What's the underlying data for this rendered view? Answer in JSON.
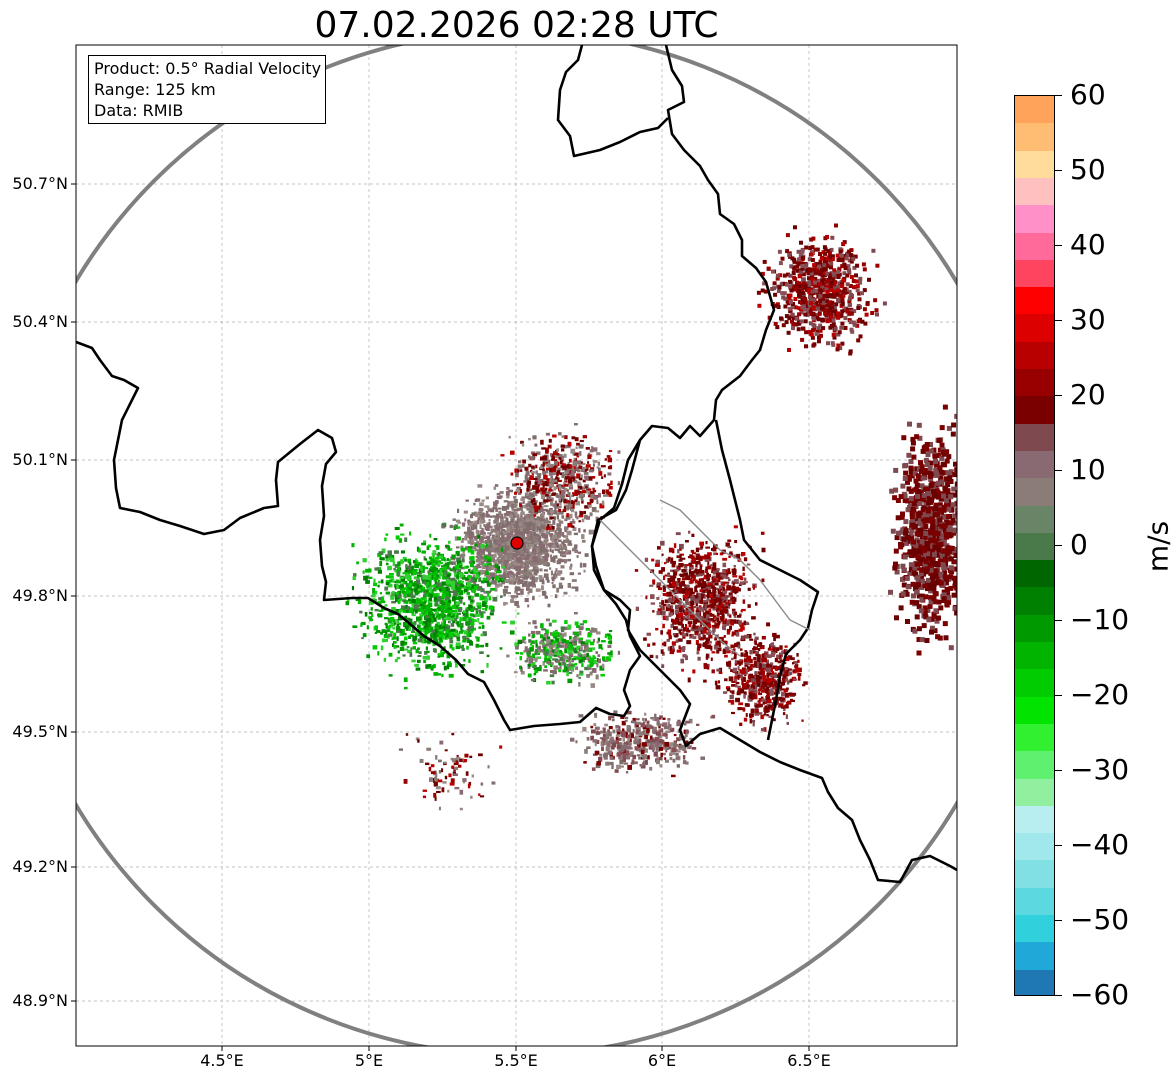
{
  "title": "07.02.2026 02:28 UTC",
  "info_box": {
    "product": "Product: 0.5° Radial Velocity",
    "range": "Range: 125 km",
    "source": "Data: RMIB"
  },
  "latitude_labels": [
    "50.7°N",
    "50.4°N",
    "50.1°N",
    "49.8°N",
    "49.5°N",
    "49.2°N",
    "48.9°N"
  ],
  "longitude_labels": [
    "4.5°E",
    "5°E",
    "5.5°E",
    "6°E",
    "6.5°E"
  ],
  "colorbar": {
    "unit": "m/s",
    "ticks": [
      "60",
      "50",
      "40",
      "30",
      "20",
      "10",
      "0",
      "−10",
      "−20",
      "−30",
      "−40",
      "−50",
      "−60"
    ],
    "colors_top_to_bottom": [
      "#ffa35a",
      "#ffbd74",
      "#ffdc9c",
      "#ffc0c0",
      "#ff90c8",
      "#ff6a9a",
      "#ff4460",
      "#ff0000",
      "#dc0000",
      "#b80000",
      "#980000",
      "#7a0000",
      "#7e4a50",
      "#8a6a72",
      "#8c7c78",
      "#6a8468",
      "#4a7a4a",
      "#006600",
      "#008000",
      "#009a00",
      "#00b400",
      "#00cc00",
      "#00e400",
      "#30f030",
      "#60f070",
      "#90f0a0",
      "#b8eef0",
      "#a0e8ec",
      "#80e0e4",
      "#5cd8e0",
      "#30d0dc",
      "#20a8d8",
      "#1f77b4"
    ]
  },
  "radar_site": {
    "name": "radar-site",
    "color": "#e00000"
  }
}
